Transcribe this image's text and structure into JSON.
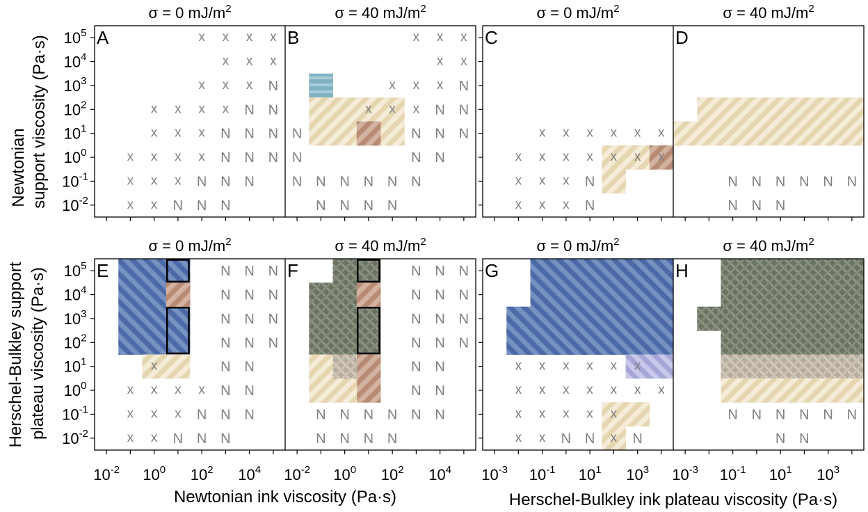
{
  "figure": {
    "y_label_top_1": "Newtonian",
    "y_label_top_2": "support viscosity (Pa·s)",
    "y_label_bottom_1": "Herschel-Bulkley support",
    "y_label_bottom_2": "plateau viscosity (Pa·s)",
    "x_label_left": "Newtonian ink viscosity (Pa·s)",
    "x_label_right": "Herschel-Bulkley ink plateau viscosity (Pa·s)",
    "marker_x": "x",
    "marker_n": "N"
  },
  "colors": {
    "tan": "#d9c08c",
    "brown": "#a0705c",
    "blue": "#3b5fa0",
    "teal": "#6fa6b8",
    "lavender": "#a9a9dc",
    "olive": "#5e6652",
    "marker": "#808080",
    "frame": "#000000"
  },
  "chart_data": [
    {
      "type": "heatmap",
      "panel": "A",
      "subtitle": "σ = 0 mJ/m²",
      "surface_tension": 0,
      "ink": "Newtonian",
      "support": "Newtonian",
      "y_exponents": [
        5,
        4,
        3,
        2,
        1,
        0,
        -1,
        -2
      ],
      "x_exponents": [
        -2,
        -1,
        0,
        1,
        2,
        3,
        4,
        5
      ],
      "markers": [
        "....xxxx",
        ".....xxx",
        "....xxxN",
        "..xxxxNN",
        "..xxxNNN",
        ".xxxxNNN",
        ".xxxNNN.",
        ".xxNNN.."
      ],
      "regions": [],
      "outlines": []
    },
    {
      "type": "heatmap",
      "panel": "B",
      "subtitle": "σ = 40 mJ/m²",
      "surface_tension": 40,
      "ink": "Newtonian",
      "support": "Newtonian",
      "y_exponents": [
        5,
        4,
        3,
        2,
        1,
        0,
        -1,
        -2
      ],
      "x_exponents": [
        -2,
        -1,
        0,
        1,
        2,
        3,
        4,
        5
      ],
      "markers": [
        ".....xxx",
        "......xx",
        "....xxxN",
        "...xxxNN",
        "N....NNN",
        "N....NN.",
        "NNNNNN..",
        ".NNNN..."
      ],
      "regions": [
        {
          "color": "teal",
          "cells": [
            [
              2,
              1
            ]
          ]
        },
        {
          "color": "tan",
          "cells": [
            [
              3,
              1
            ],
            [
              3,
              2
            ],
            [
              3,
              3
            ],
            [
              3,
              4
            ],
            [
              4,
              1
            ],
            [
              4,
              2
            ],
            [
              4,
              4
            ]
          ]
        },
        {
          "color": "brown",
          "cells": [
            [
              4,
              3
            ]
          ]
        }
      ],
      "outlines": []
    },
    {
      "type": "heatmap",
      "panel": "C",
      "subtitle": "σ = 0 mJ/m²",
      "surface_tension": 0,
      "ink": "Herschel-Bulkley",
      "support": "Newtonian",
      "y_exponents": [
        5,
        4,
        3,
        2,
        1,
        0,
        -1,
        -2
      ],
      "x_exponents": [
        -3,
        -2,
        -1,
        0,
        1,
        2,
        3,
        4
      ],
      "markers": [
        "........",
        "........",
        "........",
        "........",
        "..xxxxxx",
        ".xxxxxxx",
        ".xxxN...",
        ".xxxN..."
      ],
      "regions": [
        {
          "color": "tan",
          "cells": [
            [
              5,
              5
            ],
            [
              5,
              6
            ],
            [
              6,
              5
            ]
          ]
        },
        {
          "color": "brown",
          "cells": [
            [
              5,
              7
            ]
          ]
        }
      ],
      "outlines": []
    },
    {
      "type": "heatmap",
      "panel": "D",
      "subtitle": "σ = 40 mJ/m²",
      "surface_tension": 40,
      "ink": "Herschel-Bulkley",
      "support": "Newtonian",
      "y_exponents": [
        5,
        4,
        3,
        2,
        1,
        0,
        -1,
        -2
      ],
      "x_exponents": [
        -3,
        -2,
        -1,
        0,
        1,
        2,
        3,
        4
      ],
      "markers": [
        "........",
        "........",
        "........",
        "........",
        "........",
        "........",
        "..NNNNNN",
        "..NNN..."
      ],
      "regions": [
        {
          "color": "tan",
          "cells": [
            [
              3,
              1
            ],
            [
              3,
              2
            ],
            [
              3,
              3
            ],
            [
              3,
              4
            ],
            [
              3,
              5
            ],
            [
              3,
              6
            ],
            [
              3,
              7
            ],
            [
              4,
              0
            ],
            [
              4,
              1
            ],
            [
              4,
              2
            ],
            [
              4,
              3
            ],
            [
              4,
              4
            ],
            [
              4,
              5
            ],
            [
              4,
              6
            ],
            [
              4,
              7
            ]
          ]
        }
      ],
      "outlines": []
    },
    {
      "type": "heatmap",
      "panel": "E",
      "subtitle": "σ = 0 mJ/m²",
      "surface_tension": 0,
      "ink": "Newtonian",
      "support": "Herschel-Bulkley",
      "y_exponents": [
        5,
        4,
        3,
        2,
        1,
        0,
        -1,
        -2
      ],
      "x_exponents": [
        -2,
        -1,
        0,
        1,
        2,
        3,
        4,
        5
      ],
      "markers": [
        ".....NNN",
        ".....NNN",
        ".....NNN",
        ".....NNN",
        "..x..NN.",
        ".xxxxNN.",
        ".xxxNNN.",
        ".xxNNN.."
      ],
      "regions": [
        {
          "color": "blue",
          "cells": [
            [
              0,
              1
            ],
            [
              0,
              2
            ],
            [
              0,
              3
            ],
            [
              1,
              1
            ],
            [
              1,
              2
            ],
            [
              2,
              1
            ],
            [
              2,
              2
            ],
            [
              2,
              3
            ],
            [
              3,
              1
            ],
            [
              3,
              2
            ],
            [
              3,
              3
            ]
          ]
        },
        {
          "color": "brown",
          "cells": [
            [
              1,
              3
            ]
          ]
        },
        {
          "color": "tan",
          "cells": [
            [
              4,
              2
            ],
            [
              4,
              3
            ]
          ]
        }
      ],
      "outlines": [
        {
          "row": 0,
          "col": 3,
          "rows": 1
        },
        {
          "row": 2,
          "col": 3,
          "rows": 2
        }
      ]
    },
    {
      "type": "heatmap",
      "panel": "F",
      "subtitle": "σ = 40 mJ/m²",
      "surface_tension": 40,
      "ink": "Newtonian",
      "support": "Herschel-Bulkley",
      "y_exponents": [
        5,
        4,
        3,
        2,
        1,
        0,
        -1,
        -2
      ],
      "x_exponents": [
        -2,
        -1,
        0,
        1,
        2,
        3,
        4,
        5
      ],
      "markers": [
        ".....NNN",
        ".....NNN",
        ".....NNN",
        ".....NNN",
        ".....NN.",
        ".....NN.",
        ".NNNNNN.",
        ".NNNN..."
      ],
      "regions": [
        {
          "color": "olive",
          "cells": [
            [
              0,
              2
            ],
            [
              0,
              3
            ],
            [
              1,
              1
            ],
            [
              1,
              2
            ],
            [
              2,
              1
            ],
            [
              2,
              2
            ],
            [
              2,
              3
            ],
            [
              3,
              1
            ],
            [
              3,
              2
            ],
            [
              3,
              3
            ]
          ]
        },
        {
          "color": "brown",
          "cells": [
            [
              1,
              3
            ],
            [
              4,
              3
            ],
            [
              5,
              3
            ]
          ]
        },
        {
          "color": "tan",
          "cells": [
            [
              4,
              1
            ],
            [
              5,
              1
            ],
            [
              5,
              2
            ]
          ]
        },
        {
          "color": "olive-light",
          "cells": [
            [
              4,
              2
            ]
          ]
        }
      ],
      "outlines": [
        {
          "row": 0,
          "col": 3,
          "rows": 1
        },
        {
          "row": 2,
          "col": 3,
          "rows": 2
        }
      ]
    },
    {
      "type": "heatmap",
      "panel": "G",
      "subtitle": "σ = 0 mJ/m²",
      "surface_tension": 0,
      "ink": "Herschel-Bulkley",
      "support": "Herschel-Bulkley",
      "y_exponents": [
        5,
        4,
        3,
        2,
        1,
        0,
        -1,
        -2
      ],
      "x_exponents": [
        -3,
        -2,
        -1,
        0,
        1,
        2,
        3,
        4
      ],
      "markers": [
        "........",
        "........",
        "........",
        "........",
        ".xxxxxx.",
        ".xxxxxxx",
        ".xxxxx..",
        ".xxNNxN."
      ],
      "regions": [
        {
          "color": "blue",
          "cells": [
            [
              0,
              2
            ],
            [
              0,
              3
            ],
            [
              0,
              4
            ],
            [
              0,
              5
            ],
            [
              0,
              6
            ],
            [
              0,
              7
            ],
            [
              1,
              2
            ],
            [
              1,
              3
            ],
            [
              1,
              4
            ],
            [
              1,
              5
            ],
            [
              1,
              6
            ],
            [
              1,
              7
            ],
            [
              2,
              1
            ],
            [
              2,
              2
            ],
            [
              2,
              3
            ],
            [
              2,
              4
            ],
            [
              2,
              5
            ],
            [
              2,
              6
            ],
            [
              2,
              7
            ],
            [
              3,
              1
            ],
            [
              3,
              2
            ],
            [
              3,
              3
            ],
            [
              3,
              4
            ],
            [
              3,
              5
            ],
            [
              3,
              6
            ],
            [
              3,
              7
            ]
          ]
        },
        {
          "color": "lavender",
          "cells": [
            [
              4,
              6
            ],
            [
              4,
              7
            ]
          ]
        },
        {
          "color": "tan",
          "cells": [
            [
              6,
              5
            ],
            [
              6,
              6
            ],
            [
              7,
              5
            ]
          ]
        }
      ],
      "outlines": []
    },
    {
      "type": "heatmap",
      "panel": "H",
      "subtitle": "σ = 40 mJ/m²",
      "surface_tension": 40,
      "ink": "Herschel-Bulkley",
      "support": "Herschel-Bulkley",
      "y_exponents": [
        5,
        4,
        3,
        2,
        1,
        0,
        -1,
        -2
      ],
      "x_exponents": [
        -3,
        -2,
        -1,
        0,
        1,
        2,
        3,
        4
      ],
      "markers": [
        "........",
        "........",
        "........",
        "........",
        "........",
        "........",
        "..NNNNNN",
        "....NN.."
      ],
      "regions": [
        {
          "color": "olive",
          "cells": [
            [
              0,
              2
            ],
            [
              0,
              3
            ],
            [
              0,
              4
            ],
            [
              0,
              5
            ],
            [
              0,
              6
            ],
            [
              0,
              7
            ],
            [
              1,
              2
            ],
            [
              1,
              3
            ],
            [
              1,
              4
            ],
            [
              1,
              5
            ],
            [
              1,
              6
            ],
            [
              1,
              7
            ],
            [
              2,
              1
            ],
            [
              2,
              2
            ],
            [
              2,
              3
            ],
            [
              2,
              4
            ],
            [
              2,
              5
            ],
            [
              2,
              6
            ],
            [
              2,
              7
            ],
            [
              3,
              2
            ],
            [
              3,
              3
            ],
            [
              3,
              4
            ],
            [
              3,
              5
            ],
            [
              3,
              6
            ],
            [
              3,
              7
            ]
          ]
        },
        {
          "color": "olive-light",
          "cells": [
            [
              4,
              2
            ],
            [
              4,
              3
            ],
            [
              4,
              4
            ],
            [
              4,
              5
            ],
            [
              4,
              6
            ],
            [
              4,
              7
            ]
          ]
        },
        {
          "color": "tan",
          "cells": [
            [
              5,
              2
            ],
            [
              5,
              3
            ],
            [
              5,
              4
            ],
            [
              5,
              5
            ],
            [
              5,
              6
            ],
            [
              5,
              7
            ]
          ]
        }
      ],
      "outlines": []
    }
  ]
}
